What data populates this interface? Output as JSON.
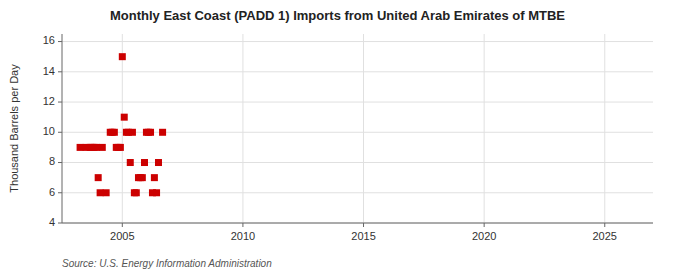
{
  "chart_data": {
    "type": "scatter",
    "title": "Monthly East Coast (PADD 1) Imports from United Arab Emirates of MTBE",
    "ylabel": "Thousand Barrels per Day",
    "source": "Source: U.S. Energy Information Administration",
    "x": [
      2003.25,
      2003.5,
      2003.67,
      2003.75,
      2003.83,
      2003.92,
      2004.0,
      2004.08,
      2004.17,
      2004.33,
      2004.5,
      2004.58,
      2004.67,
      2004.75,
      2004.83,
      2004.92,
      2005.0,
      2005.08,
      2005.17,
      2005.25,
      2005.33,
      2005.42,
      2005.5,
      2005.58,
      2005.67,
      2005.75,
      2005.83,
      2005.92,
      2006.0,
      2006.08,
      2006.17,
      2006.25,
      2006.33,
      2006.42,
      2006.5,
      2006.67
    ],
    "values": [
      9.0,
      9.0,
      9.0,
      9.0,
      9.0,
      9.0,
      7.0,
      6.0,
      9.0,
      6.0,
      10.0,
      10.0,
      10.0,
      9.0,
      9.0,
      9.0,
      15.0,
      11.0,
      10.0,
      10.0,
      8.0,
      10.0,
      6.0,
      6.0,
      7.0,
      7.0,
      7.0,
      8.0,
      10.0,
      10.0,
      10.0,
      6.0,
      7.0,
      6.0,
      8.0,
      10.0
    ],
    "color": "#cc0000",
    "marker": "square",
    "xlim": [
      2002.5,
      2027
    ],
    "ylim": [
      4,
      16.5
    ],
    "xticks": [
      2005,
      2010,
      2015,
      2020,
      2025
    ],
    "yticks": [
      4,
      6,
      8,
      10,
      12,
      14,
      16
    ],
    "grid": true
  }
}
